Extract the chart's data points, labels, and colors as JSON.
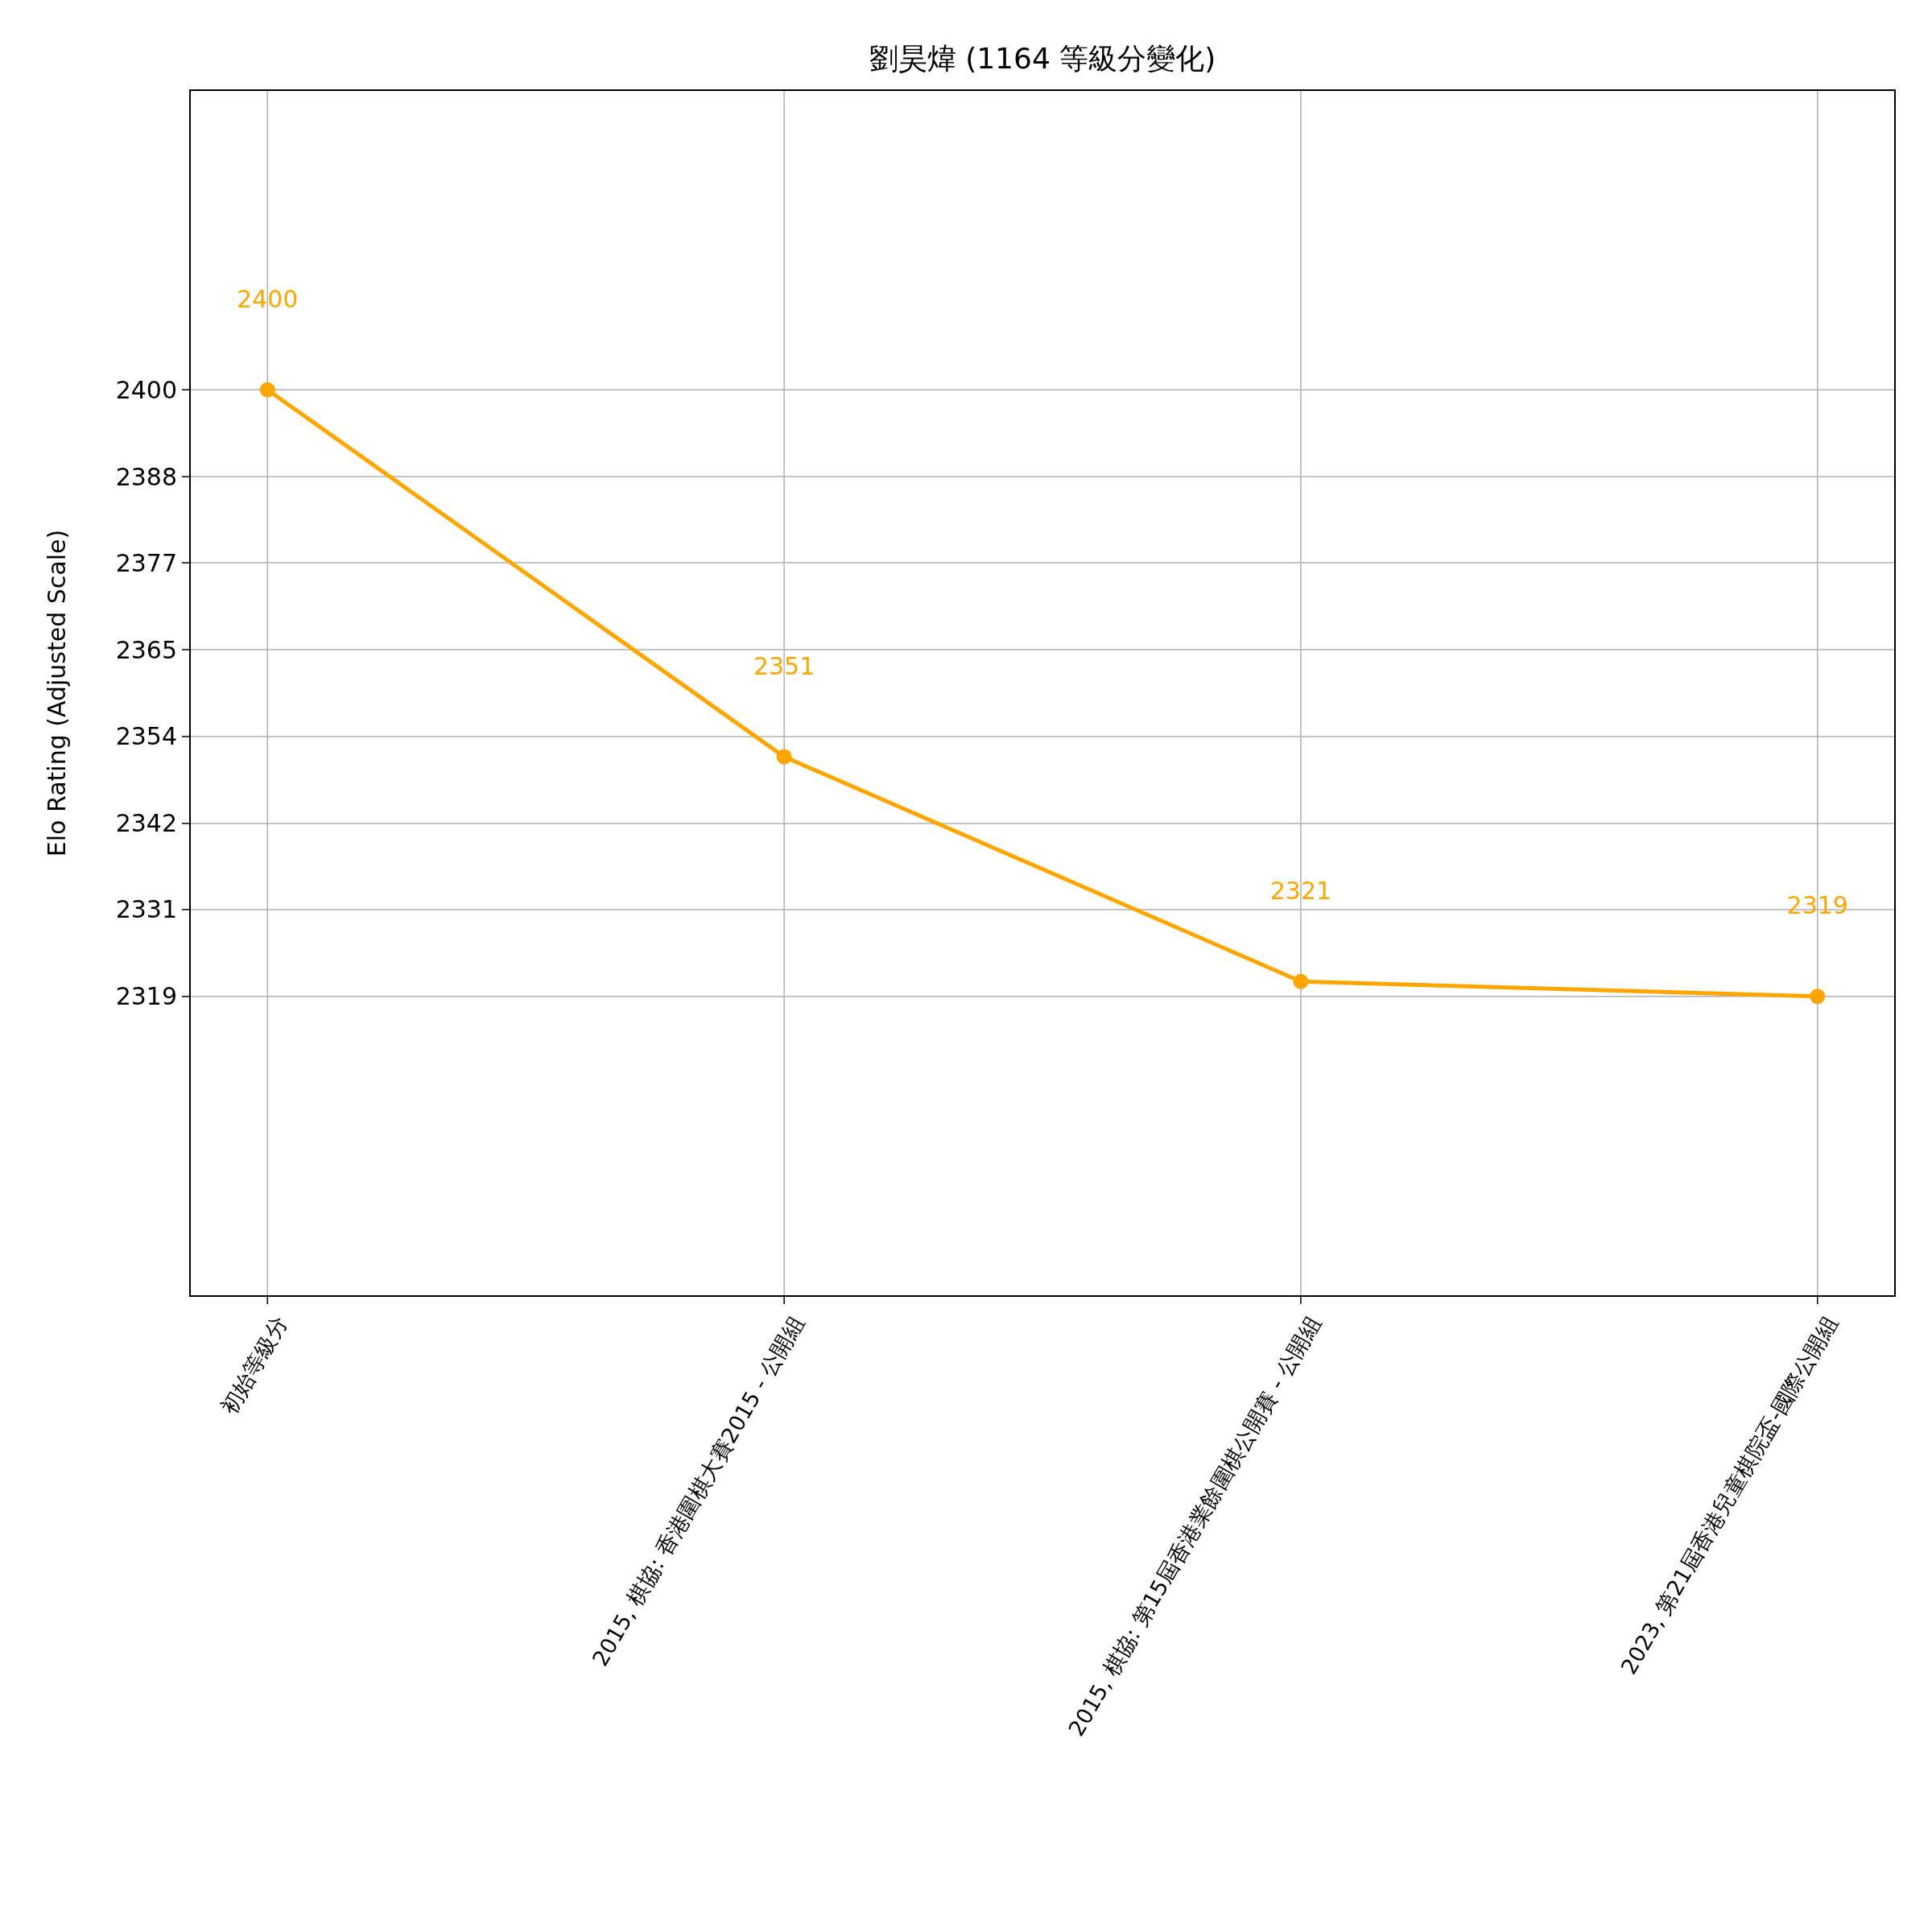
{
  "chart_data": {
    "type": "line",
    "title": "劉昊煒 (1164 等級分變化)",
    "ylabel": "Elo Rating (Adjusted Scale)",
    "categories": [
      "初始等級分",
      "2015, 棋協: 香港圍棋大賽2015 - 公開組",
      "2015, 棋協: 第15屆香港業餘圍棋公開賽 - 公開組",
      "2023, 第21屆香港兒童棋院盃-國際公開組"
    ],
    "series": [
      {
        "color": "#ffa500",
        "values": [
          2400,
          2351,
          2321,
          2319
        ]
      }
    ],
    "ylim": [
      2279,
      2440
    ],
    "yticks": [
      2319,
      {
        "value": 2330.6,
        "label": "2331"
      },
      {
        "value": 2342.1,
        "label": "2342"
      },
      {
        "value": 2353.7,
        "label": "2354"
      },
      {
        "value": 2365.3,
        "label": "2365"
      },
      {
        "value": 2376.9,
        "label": "2377"
      },
      {
        "value": 2388.4,
        "label": "2388"
      },
      2400
    ],
    "grid": true,
    "marker": "circle",
    "line_style": "solid",
    "data_labels": true
  }
}
